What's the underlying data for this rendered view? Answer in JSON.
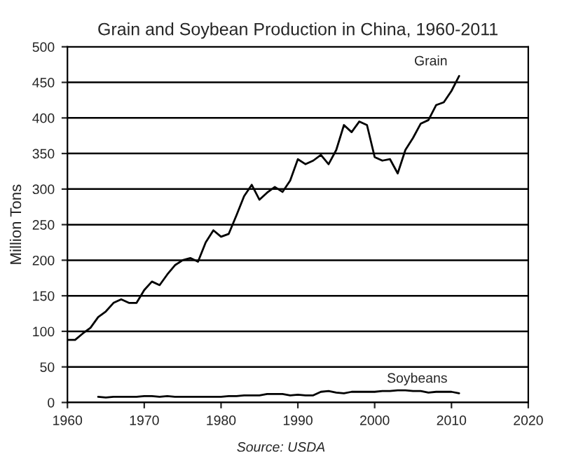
{
  "chart_data": {
    "type": "line",
    "title": "Grain and Soybean Production in China, 1960-2011",
    "ylabel": "Million Tons",
    "annotations": [
      "Source: USDA"
    ],
    "xlim": [
      1960,
      2020
    ],
    "xticks": [
      1960,
      1970,
      1980,
      1990,
      2000,
      2010,
      2020
    ],
    "ylim": [
      0,
      500
    ],
    "yticks": [
      0,
      50,
      100,
      150,
      200,
      250,
      300,
      350,
      400,
      450,
      500
    ],
    "grid": "y",
    "legend": false,
    "marker": "none",
    "line_style": "solid",
    "series": [
      {
        "name": "Grain",
        "color": "#000000",
        "x": [
          1960,
          1961,
          1962,
          1963,
          1964,
          1965,
          1966,
          1967,
          1968,
          1969,
          1970,
          1971,
          1972,
          1973,
          1974,
          1975,
          1976,
          1977,
          1978,
          1979,
          1980,
          1981,
          1982,
          1983,
          1984,
          1985,
          1986,
          1987,
          1988,
          1989,
          1990,
          1991,
          1992,
          1993,
          1994,
          1995,
          1996,
          1997,
          1998,
          1999,
          2000,
          2001,
          2002,
          2003,
          2004,
          2005,
          2006,
          2007,
          2008,
          2009,
          2010,
          2011
        ],
        "values": [
          88,
          88,
          97,
          105,
          120,
          128,
          140,
          145,
          140,
          140,
          158,
          170,
          165,
          180,
          193,
          200,
          203,
          198,
          225,
          242,
          233,
          237,
          263,
          290,
          306,
          285,
          295,
          303,
          296,
          312,
          342,
          335,
          340,
          348,
          335,
          355,
          390,
          380,
          395,
          390,
          345,
          340,
          342,
          322,
          355,
          372,
          392,
          397,
          418,
          422,
          438,
          459
        ]
      },
      {
        "name": "Soybeans",
        "color": "#000000",
        "x": [
          1964,
          1965,
          1966,
          1967,
          1968,
          1969,
          1970,
          1971,
          1972,
          1973,
          1974,
          1975,
          1976,
          1977,
          1978,
          1979,
          1980,
          1981,
          1982,
          1983,
          1984,
          1985,
          1986,
          1987,
          1988,
          1989,
          1990,
          1991,
          1992,
          1993,
          1994,
          1995,
          1996,
          1997,
          1998,
          1999,
          2000,
          2001,
          2002,
          2003,
          2004,
          2005,
          2006,
          2007,
          2008,
          2009,
          2010,
          2011
        ],
        "values": [
          8,
          7,
          8,
          8,
          8,
          8,
          9,
          9,
          8,
          9,
          8,
          8,
          8,
          8,
          8,
          8,
          8,
          9,
          9,
          10,
          10,
          10,
          12,
          12,
          12,
          10,
          11,
          10,
          10,
          15,
          16,
          14,
          13,
          15,
          15,
          15,
          15,
          16,
          16,
          17,
          17,
          16,
          16,
          14,
          15,
          15,
          15,
          13
        ]
      }
    ]
  }
}
